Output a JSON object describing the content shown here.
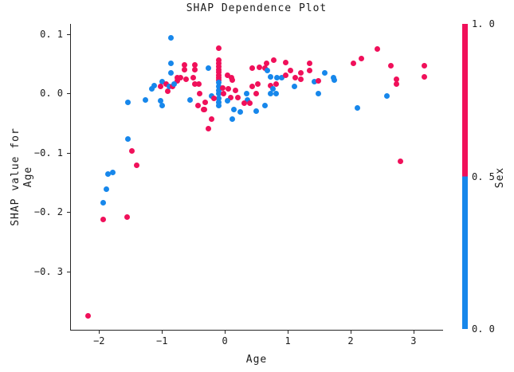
{
  "title": "SHAP Dependence Plot",
  "colors": {
    "point_high": "#f0105a",
    "point_low": "#1787eb",
    "axis": "#262626",
    "text": "#1a1a1a",
    "background": "#ffffff"
  },
  "chart_data": {
    "type": "scatter",
    "title": "SHAP Dependence Plot",
    "xlabel": "Age",
    "ylabel_lines": [
      "SHAP value for",
      "Age"
    ],
    "xlim": [
      -2.46,
      3.47
    ],
    "ylim": [
      -0.4,
      0.117
    ],
    "grid": false,
    "x_ticks": [
      {
        "v": -2,
        "label": "−2"
      },
      {
        "v": -1,
        "label": "−1"
      },
      {
        "v": 0,
        "label": "0"
      },
      {
        "v": 1,
        "label": "1"
      },
      {
        "v": 2,
        "label": "2"
      },
      {
        "v": 3,
        "label": "3"
      }
    ],
    "y_ticks": [
      {
        "v": 0.1,
        "label": "0. 1"
      },
      {
        "v": 0.0,
        "label": "0. 0"
      },
      {
        "v": -0.1,
        "label": "−0. 1"
      },
      {
        "v": -0.2,
        "label": "−0. 2"
      },
      {
        "v": -0.3,
        "label": "−0. 3"
      }
    ],
    "colorbar": {
      "label": "Sex",
      "high_value": 1.0,
      "low_value": 0.0,
      "high_color": "#f0105a",
      "low_color": "#1787eb",
      "ticks": [
        {
          "pos": 1.0,
          "label": "1. 0"
        },
        {
          "pos": 0.5,
          "label": "0. 5"
        },
        {
          "pos": 0.0,
          "label": "0. 0"
        }
      ]
    },
    "points_format": [
      "age",
      "shap_value",
      "sex"
    ],
    "points": [
      [
        -2.19,
        -0.375,
        1
      ],
      [
        -1.95,
        -0.213,
        1
      ],
      [
        -1.57,
        -0.209,
        1
      ],
      [
        -1.95,
        -0.184,
        0
      ],
      [
        -1.89,
        -0.162,
        0
      ],
      [
        -1.87,
        -0.136,
        0
      ],
      [
        -1.8,
        -0.133,
        0
      ],
      [
        -1.41,
        -0.121,
        1
      ],
      [
        -1.49,
        -0.097,
        1
      ],
      [
        -1.56,
        -0.077,
        0
      ],
      [
        -1.56,
        -0.015,
        0
      ],
      [
        -1.27,
        -0.011,
        0
      ],
      [
        -0.87,
        0.094,
        0
      ],
      [
        -0.87,
        0.051,
        0
      ],
      [
        -0.66,
        0.048,
        1
      ],
      [
        -0.66,
        0.04,
        1
      ],
      [
        -0.49,
        0.048,
        1
      ],
      [
        -0.49,
        0.04,
        1
      ],
      [
        -0.87,
        0.034,
        0
      ],
      [
        -0.77,
        0.027,
        1
      ],
      [
        -0.77,
        0.021,
        1
      ],
      [
        -0.72,
        0.026,
        1
      ],
      [
        -0.63,
        0.024,
        1
      ],
      [
        -1.13,
        0.013,
        0
      ],
      [
        -1.18,
        0.007,
        0
      ],
      [
        -1.01,
        0.019,
        0
      ],
      [
        -1.03,
        0.012,
        1
      ],
      [
        -0.95,
        0.016,
        1
      ],
      [
        -0.92,
        0.003,
        1
      ],
      [
        -0.89,
        0.012,
        0
      ],
      [
        -0.85,
        0.012,
        1
      ],
      [
        -0.82,
        0.016,
        0
      ],
      [
        -0.52,
        0.026,
        1
      ],
      [
        -0.49,
        0.015,
        1
      ],
      [
        -0.43,
        0.016,
        1
      ],
      [
        -1.03,
        -0.013,
        0
      ],
      [
        -1.01,
        -0.021,
        0
      ],
      [
        -0.57,
        -0.011,
        0
      ],
      [
        -0.41,
        -0.001,
        1
      ],
      [
        -0.44,
        -0.02,
        1
      ],
      [
        -0.35,
        -0.027,
        1
      ],
      [
        -0.11,
        0.0765,
        1
      ],
      [
        -0.11,
        0.056,
        1
      ],
      [
        -0.11,
        0.05,
        1
      ],
      [
        -0.11,
        0.045,
        1
      ],
      [
        -0.11,
        0.04,
        1
      ],
      [
        -0.11,
        0.036,
        1
      ],
      [
        -0.11,
        0.031,
        1
      ],
      [
        -0.11,
        0.027,
        1
      ],
      [
        -0.11,
        0.022,
        1
      ],
      [
        -0.11,
        0.018,
        0
      ],
      [
        -0.11,
        0.012,
        0
      ],
      [
        -0.11,
        0.005,
        0
      ],
      [
        -0.11,
        -0.001,
        0
      ],
      [
        -0.11,
        -0.008,
        0
      ],
      [
        -0.11,
        -0.015,
        0
      ],
      [
        -0.11,
        -0.021,
        0
      ],
      [
        -0.28,
        0.043,
        0
      ],
      [
        0.03,
        0.03,
        1
      ],
      [
        0.09,
        0.027,
        1
      ],
      [
        0.1,
        0.023,
        1
      ],
      [
        -0.05,
        0.009,
        1
      ],
      [
        -0.03,
        0.0,
        1
      ],
      [
        0.04,
        0.007,
        1
      ],
      [
        0.08,
        -0.007,
        1
      ],
      [
        0.03,
        -0.013,
        0
      ],
      [
        0.16,
        0.005,
        1
      ],
      [
        0.2,
        -0.007,
        1
      ],
      [
        0.33,
        0.0,
        0
      ],
      [
        0.35,
        -0.011,
        0
      ],
      [
        0.29,
        -0.017,
        1
      ],
      [
        0.39,
        -0.017,
        1
      ],
      [
        0.13,
        -0.028,
        0
      ],
      [
        -0.32,
        -0.015,
        1
      ],
      [
        -0.34,
        -0.027,
        1
      ],
      [
        -0.22,
        -0.004,
        0
      ],
      [
        -0.19,
        -0.008,
        1
      ],
      [
        -0.22,
        -0.043,
        1
      ],
      [
        0.1,
        -0.043,
        0
      ],
      [
        -0.27,
        -0.06,
        1
      ],
      [
        0.23,
        -0.031,
        0
      ],
      [
        0.77,
        0.056,
        1
      ],
      [
        0.65,
        0.051,
        1
      ],
      [
        0.95,
        0.052,
        1
      ],
      [
        0.42,
        0.043,
        1
      ],
      [
        0.54,
        0.044,
        1
      ],
      [
        0.63,
        0.042,
        1
      ],
      [
        0.66,
        0.039,
        0
      ],
      [
        1.03,
        0.039,
        1
      ],
      [
        1.33,
        0.05,
        1
      ],
      [
        1.34,
        0.038,
        1
      ],
      [
        1.2,
        0.035,
        1
      ],
      [
        0.72,
        0.028,
        0
      ],
      [
        0.82,
        0.027,
        0
      ],
      [
        0.89,
        0.027,
        0
      ],
      [
        0.96,
        0.031,
        1
      ],
      [
        1.11,
        0.026,
        1
      ],
      [
        1.19,
        0.024,
        1
      ],
      [
        1.57,
        0.035,
        0
      ],
      [
        1.41,
        0.02,
        0
      ],
      [
        1.48,
        0.021,
        1
      ],
      [
        1.71,
        0.027,
        0
      ],
      [
        1.73,
        0.022,
        0
      ],
      [
        0.42,
        0.012,
        1
      ],
      [
        0.51,
        0.015,
        1
      ],
      [
        0.72,
        0.013,
        1
      ],
      [
        0.8,
        0.015,
        1
      ],
      [
        0.75,
        0.008,
        0
      ],
      [
        1.09,
        0.012,
        0
      ],
      [
        0.48,
        -0.001,
        1
      ],
      [
        0.71,
        -0.001,
        0
      ],
      [
        0.8,
        -0.001,
        0
      ],
      [
        1.48,
        0.0,
        0
      ],
      [
        0.63,
        -0.02,
        0
      ],
      [
        0.48,
        -0.03,
        0
      ],
      [
        2.41,
        0.075,
        1
      ],
      [
        2.16,
        0.059,
        1
      ],
      [
        2.03,
        0.05,
        1
      ],
      [
        2.63,
        0.046,
        1
      ],
      [
        3.16,
        0.047,
        1
      ],
      [
        3.16,
        0.028,
        1
      ],
      [
        2.71,
        0.024,
        1
      ],
      [
        2.71,
        0.016,
        1
      ],
      [
        2.56,
        -0.004,
        0
      ],
      [
        2.1,
        -0.024,
        0
      ],
      [
        2.78,
        -0.114,
        1
      ]
    ]
  }
}
